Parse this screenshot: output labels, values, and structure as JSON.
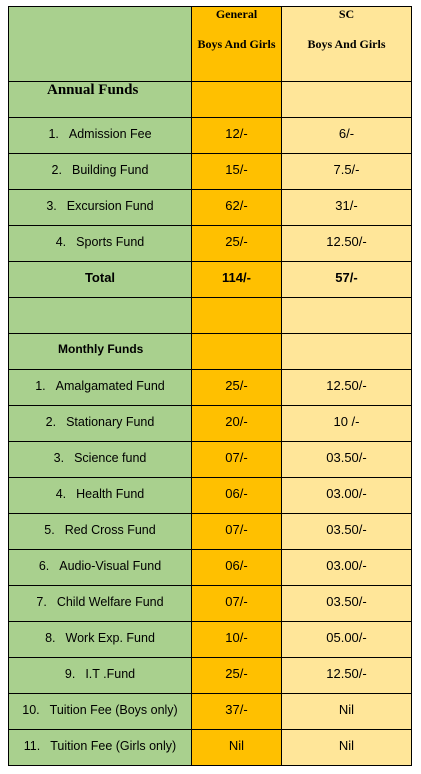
{
  "header": {
    "general": "General",
    "general_sub": "Boys And Girls",
    "sc": "SC",
    "sc_sub": "Boys And Girls"
  },
  "sections": [
    {
      "title": "Annual Funds",
      "items": [
        {
          "num": "1.",
          "name": "Admission Fee",
          "general": "12/-",
          "sc": "6/-"
        },
        {
          "num": "2.",
          "name": "Building Fund",
          "general": "15/-",
          "sc": "7.5/-"
        },
        {
          "num": "3.",
          "name": "Excursion Fund",
          "general": "62/-",
          "sc": "31/-"
        },
        {
          "num": "4.",
          "name": "Sports Fund",
          "general": "25/-",
          "sc": "12.50/-"
        }
      ],
      "total": {
        "label": "Total",
        "general": "114/-",
        "sc": "57/-"
      }
    },
    {
      "title": "Monthly Funds",
      "items": [
        {
          "num": "1.",
          "name": "Amalgamated Fund",
          "general": "25/-",
          "sc": "12.50/-"
        },
        {
          "num": "2.",
          "name": "Stationary Fund",
          "general": "20/-",
          "sc": "10 /-"
        },
        {
          "num": "3.",
          "name": "Science fund",
          "general": "07/-",
          "sc": "03.50/-"
        },
        {
          "num": "4.",
          "name": "Health Fund",
          "general": "06/-",
          "sc": "03.00/-"
        },
        {
          "num": "5.",
          "name": "Red Cross Fund",
          "general": "07/-",
          "sc": "03.50/-"
        },
        {
          "num": "6.",
          "name": "Audio-Visual Fund",
          "general": "06/-",
          "sc": "03.00/-"
        },
        {
          "num": "7.",
          "name": "Child Welfare Fund",
          "general": "07/-",
          "sc": "03.50/-"
        },
        {
          "num": "8.",
          "name": "Work Exp. Fund",
          "general": "10/-",
          "sc": "05.00/-"
        },
        {
          "num": "9.",
          "name": "I.T .Fund",
          "general": "25/-",
          "sc": "12.50/-"
        },
        {
          "num": "10.",
          "name": "Tuition Fee (Boys only)",
          "general": "37/-",
          "sc": "Nil"
        },
        {
          "num": "11.",
          "name": "Tuition Fee (Girls only)",
          "general": "Nil",
          "sc": "Nil"
        }
      ]
    }
  ]
}
